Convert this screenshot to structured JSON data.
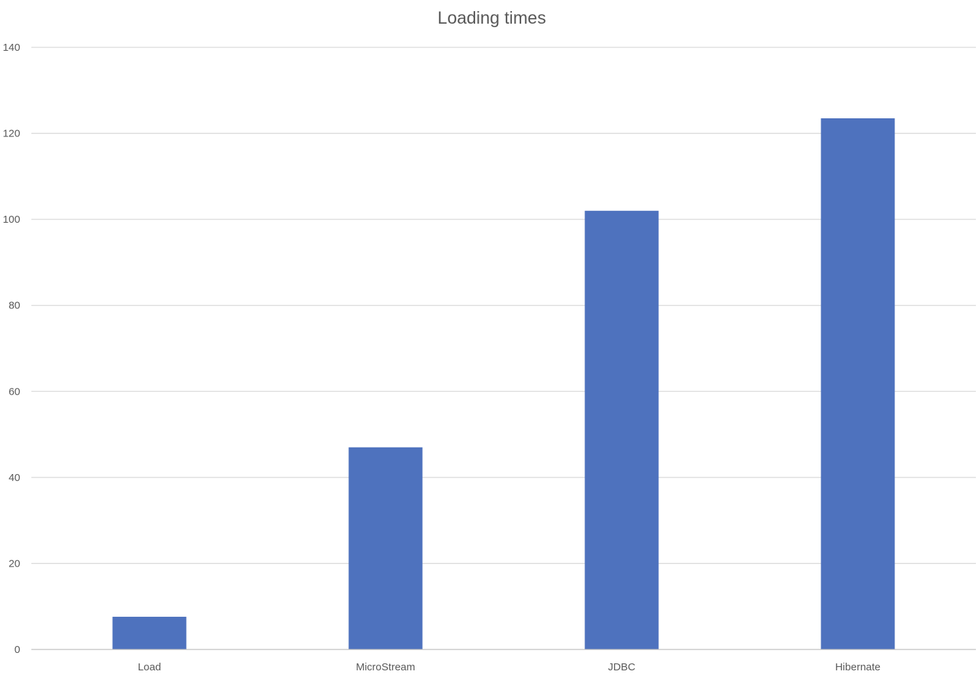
{
  "chart_data": {
    "type": "bar",
    "title": "Loading times",
    "categories": [
      "Load",
      "MicroStream",
      "JDBC",
      "Hibernate"
    ],
    "values": [
      7.6,
      47,
      102,
      123.5
    ],
    "ylim": [
      0,
      140
    ],
    "yticks": [
      0,
      20,
      40,
      60,
      80,
      100,
      120,
      140
    ],
    "grid": true,
    "legend": "none",
    "bar_color": "#4e72be"
  }
}
